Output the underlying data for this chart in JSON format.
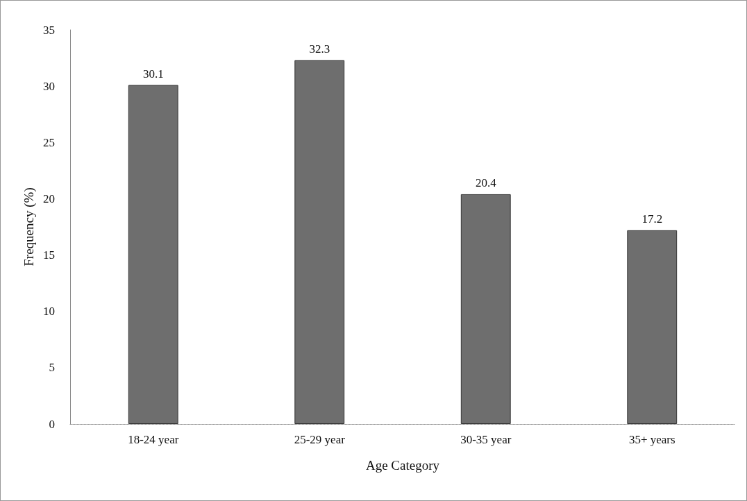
{
  "chart_data": {
    "type": "bar",
    "xlabel": "Age Category",
    "ylabel": "Frequency (%)",
    "categories": [
      "18-24 year",
      "25-29 year",
      "30-35 year",
      "35+ years"
    ],
    "values": [
      30.1,
      32.3,
      20.4,
      17.2
    ],
    "color": "#6e6e6e",
    "ylim": [
      0,
      35
    ],
    "yticks": [
      0,
      5,
      10,
      15,
      20,
      25,
      30,
      35
    ],
    "grid": false,
    "data_labels": true
  }
}
